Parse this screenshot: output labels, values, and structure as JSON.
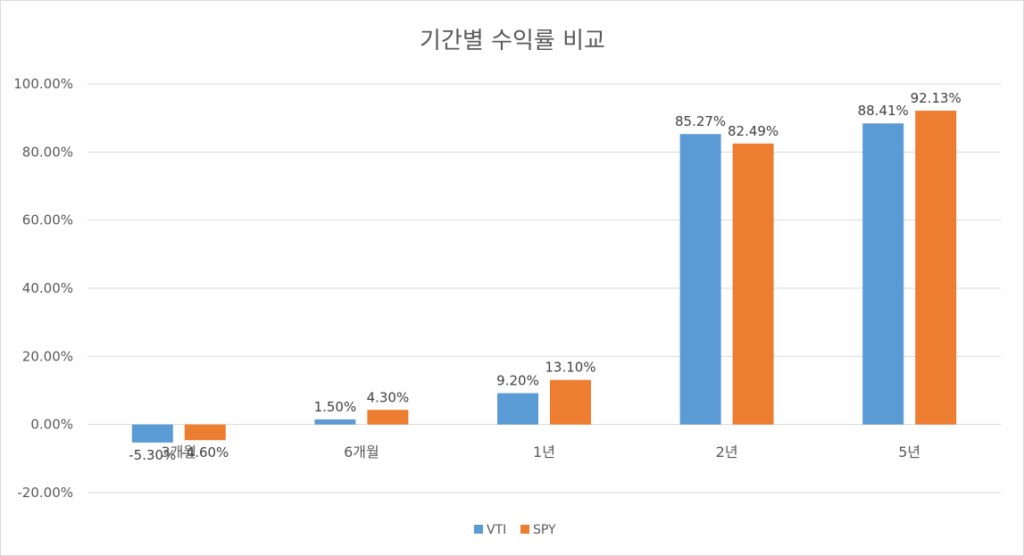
{
  "chart_data": {
    "type": "bar",
    "title": "기간별 수익률 비교",
    "xlabel": "",
    "ylabel": "",
    "categories": [
      "3개월",
      "6개월",
      "1년",
      "2년",
      "5년"
    ],
    "series": [
      {
        "name": "VTI",
        "color": "#5b9bd5",
        "values": [
          -5.3,
          1.5,
          9.2,
          85.27,
          88.41
        ],
        "labels": [
          "-5.30%",
          "1.50%",
          "9.20%",
          "85.27%",
          "88.41%"
        ]
      },
      {
        "name": "SPY",
        "color": "#ed7d31",
        "values": [
          -4.6,
          4.3,
          13.1,
          82.49,
          92.13
        ],
        "labels": [
          "-4.60%",
          "4.30%",
          "13.10%",
          "82.49%",
          "92.13%"
        ]
      }
    ],
    "ylim": [
      -20,
      100
    ],
    "yticks": [
      100,
      80,
      60,
      40,
      20,
      0,
      -20
    ],
    "ytick_labels": [
      "100.00%",
      "80.00%",
      "60.00%",
      "40.00%",
      "20.00%",
      "0.00%",
      "-20.00%"
    ],
    "grid": true,
    "legend_position": "bottom"
  }
}
